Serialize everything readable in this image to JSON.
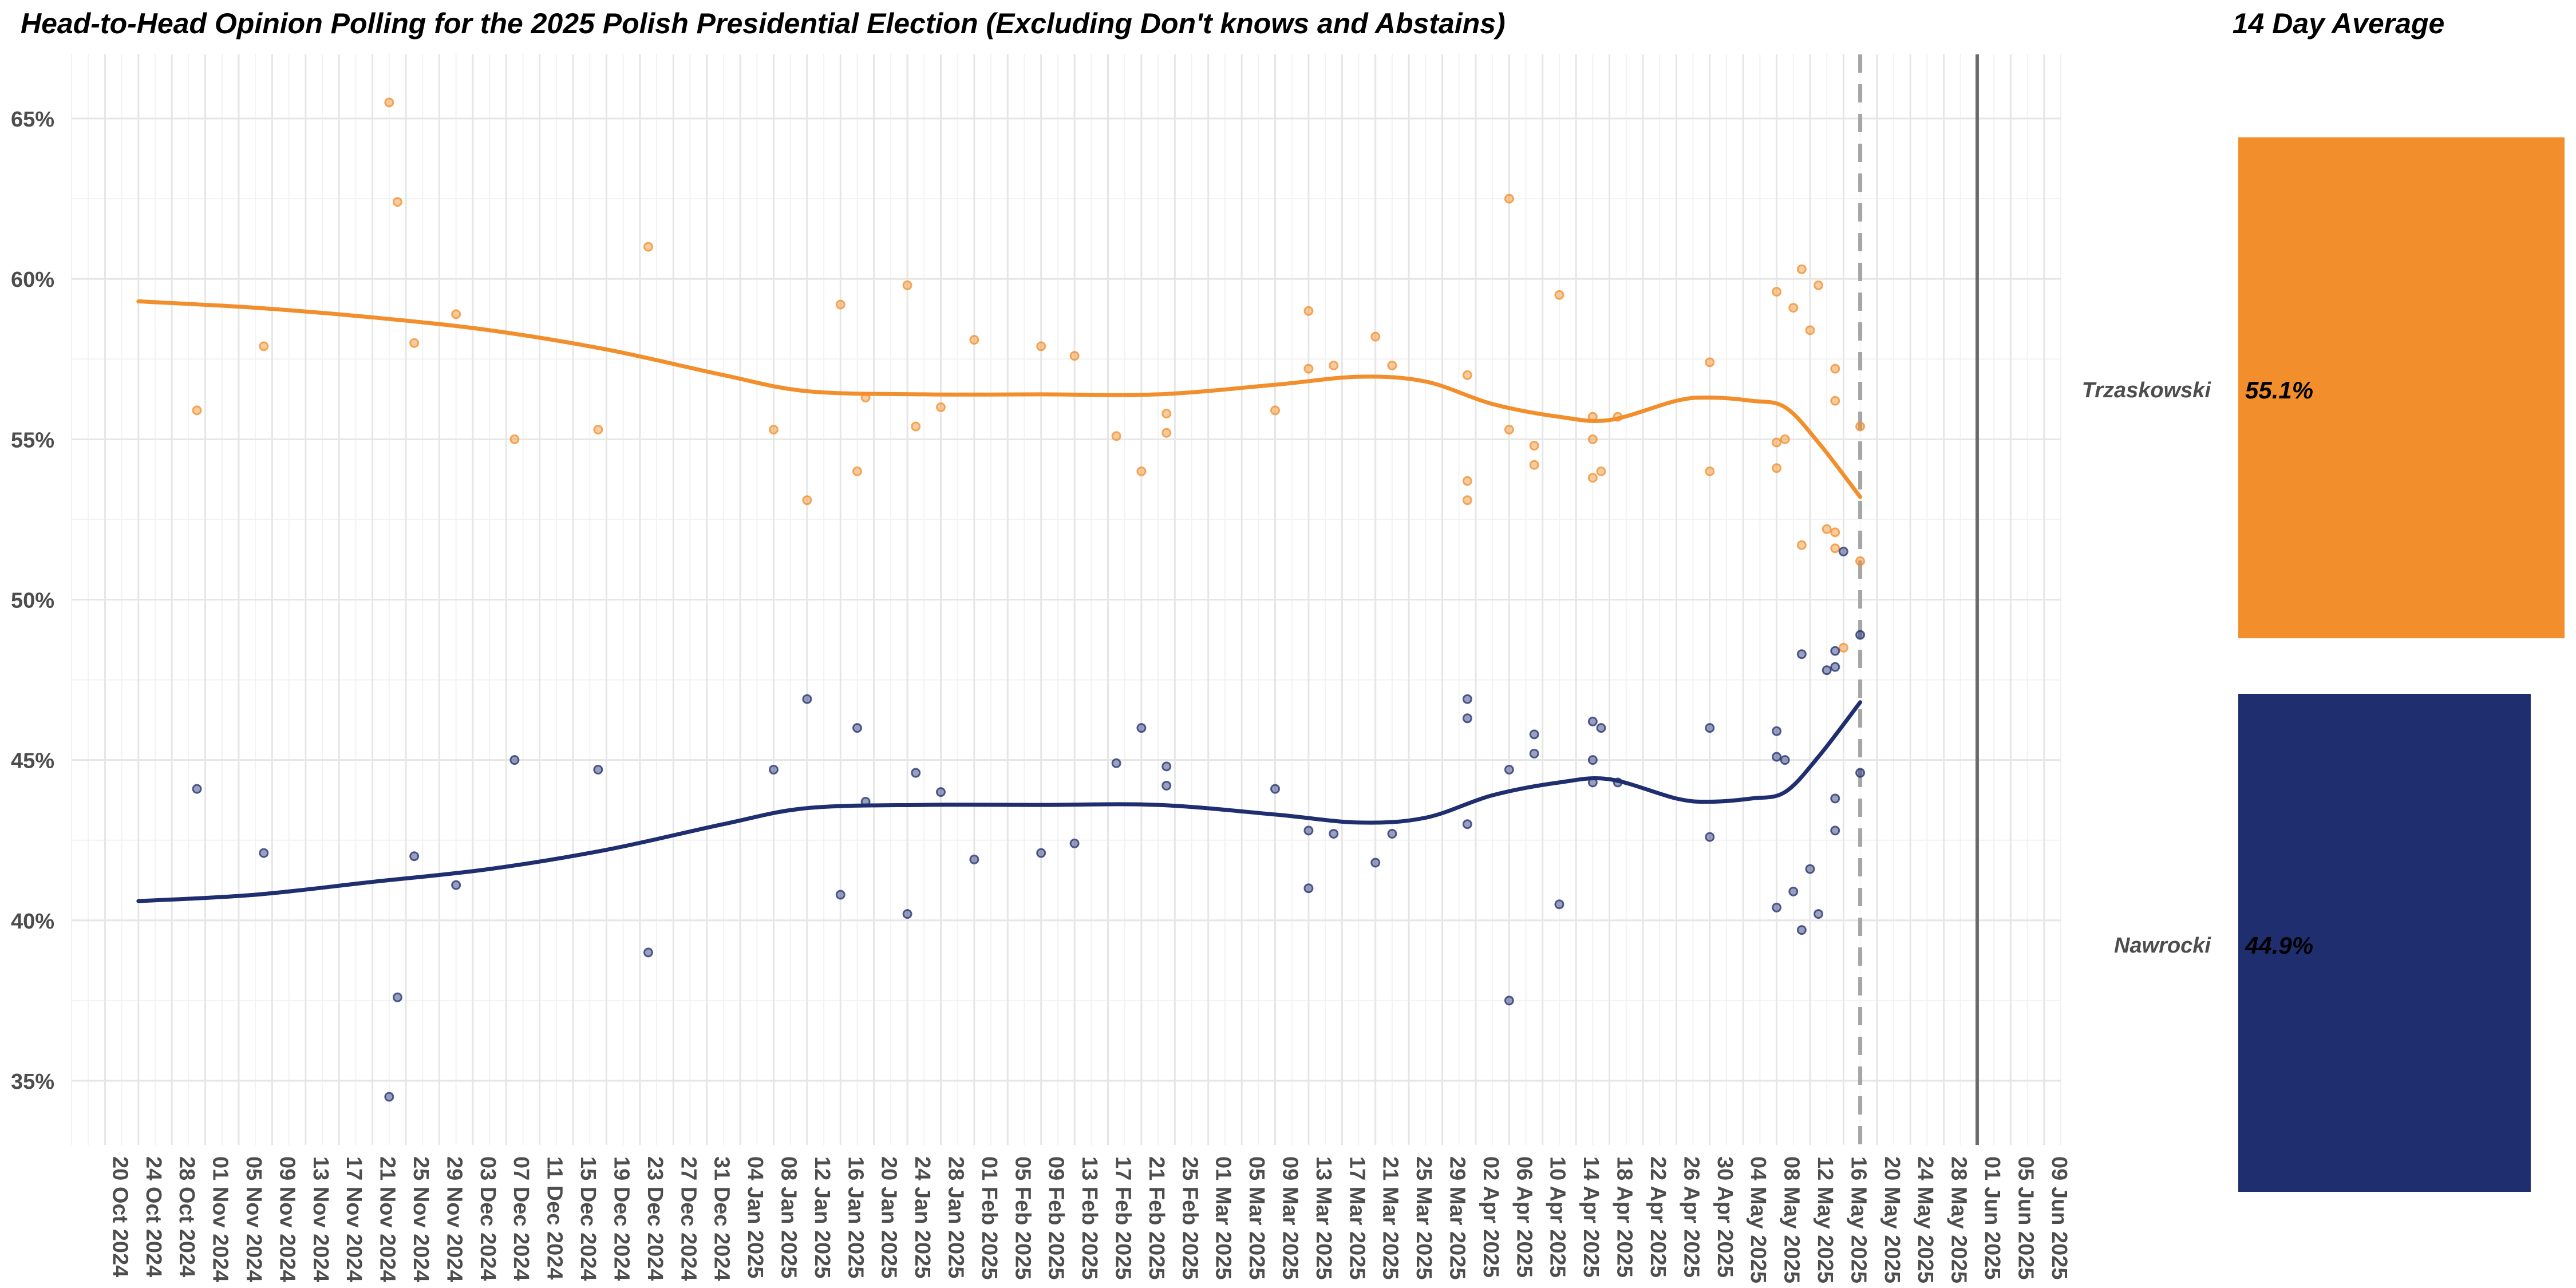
{
  "chart_data": [
    {
      "type": "scatter",
      "title": "Head-to-Head Opinion Polling for the 2025 Polish Presidential Election (Excluding Don't knows and Abstains)",
      "xlabel": "",
      "ylabel": "",
      "x_range": [
        "2024-10-16",
        "2025-06-11"
      ],
      "ylim": [
        33,
        67
      ],
      "y_ticks": [
        35,
        40,
        45,
        50,
        55,
        60,
        65
      ],
      "y_tick_labels": [
        "35%",
        "40%",
        "45%",
        "50%",
        "55%",
        "60%",
        "65%"
      ],
      "x_tick_labels": [
        "20 Oct 2024",
        "24 Oct 2024",
        "28 Oct 2024",
        "01 Nov 2024",
        "05 Nov 2024",
        "09 Nov 2024",
        "13 Nov 2024",
        "17 Nov 2024",
        "21 Nov 2024",
        "25 Nov 2024",
        "29 Nov 2024",
        "03 Dec 2024",
        "07 Dec 2024",
        "11 Dec 2024",
        "15 Dec 2024",
        "19 Dec 2024",
        "23 Dec 2024",
        "27 Dec 2024",
        "31 Dec 2024",
        "04 Jan 2025",
        "08 Jan 2025",
        "12 Jan 2025",
        "16 Jan 2025",
        "20 Jan 2025",
        "24 Jan 2025",
        "28 Jan 2025",
        "01 Feb 2025",
        "05 Feb 2025",
        "09 Feb 2025",
        "13 Feb 2025",
        "17 Feb 2025",
        "21 Feb 2025",
        "25 Feb 2025",
        "01 Mar 2025",
        "05 Mar 2025",
        "09 Mar 2025",
        "13 Mar 2025",
        "17 Mar 2025",
        "21 Mar 2025",
        "25 Mar 2025",
        "29 Mar 2025",
        "02 Apr 2025",
        "06 Apr 2025",
        "10 Apr 2025",
        "14 Apr 2025",
        "18 Apr 2025",
        "22 Apr 2025",
        "26 Apr 2025",
        "30 Apr 2025",
        "04 May 2025",
        "08 May 2025",
        "12 May 2025",
        "16 May 2025",
        "20 May 2025",
        "24 May 2025",
        "28 May 2025",
        "01 Jun 2025",
        "05 Jun 2025",
        "09 Jun 2025"
      ],
      "grid": true,
      "vline_dashed": "2025-05-18",
      "vline_solid": "2025-06-01",
      "series": [
        {
          "name": "Trzaskowski",
          "color": "#F28E2B",
          "points": [
            [
              "2024-10-31",
              55.9
            ],
            [
              "2024-11-08",
              57.9
            ],
            [
              "2024-11-23",
              65.5
            ],
            [
              "2024-11-24",
              62.4
            ],
            [
              "2024-11-26",
              58.0
            ],
            [
              "2024-12-01",
              58.9
            ],
            [
              "2024-12-08",
              55.0
            ],
            [
              "2024-12-18",
              55.3
            ],
            [
              "2024-12-24",
              61.0
            ],
            [
              "2025-01-08",
              55.3
            ],
            [
              "2025-01-12",
              53.1
            ],
            [
              "2025-01-16",
              59.2
            ],
            [
              "2025-01-18",
              54.0
            ],
            [
              "2025-01-19",
              56.3
            ],
            [
              "2025-01-24",
              59.8
            ],
            [
              "2025-01-25",
              55.4
            ],
            [
              "2025-01-28",
              56.0
            ],
            [
              "2025-02-01",
              58.1
            ],
            [
              "2025-02-09",
              57.9
            ],
            [
              "2025-02-13",
              57.6
            ],
            [
              "2025-02-18",
              55.1
            ],
            [
              "2025-02-21",
              54.0
            ],
            [
              "2025-02-24",
              55.8
            ],
            [
              "2025-02-24",
              55.2
            ],
            [
              "2025-03-09",
              55.9
            ],
            [
              "2025-03-13",
              59.0
            ],
            [
              "2025-03-13",
              57.2
            ],
            [
              "2025-03-16",
              57.3
            ],
            [
              "2025-03-21",
              58.2
            ],
            [
              "2025-03-23",
              57.3
            ],
            [
              "2025-04-01",
              57.0
            ],
            [
              "2025-04-01",
              53.7
            ],
            [
              "2025-04-01",
              53.1
            ],
            [
              "2025-04-06",
              62.5
            ],
            [
              "2025-04-06",
              55.3
            ],
            [
              "2025-04-09",
              54.8
            ],
            [
              "2025-04-09",
              54.2
            ],
            [
              "2025-04-12",
              59.5
            ],
            [
              "2025-04-16",
              55.7
            ],
            [
              "2025-04-16",
              55.0
            ],
            [
              "2025-04-16",
              53.8
            ],
            [
              "2025-04-17",
              54.0
            ],
            [
              "2025-04-19",
              55.7
            ],
            [
              "2025-04-30",
              57.4
            ],
            [
              "2025-04-30",
              54.0
            ],
            [
              "2025-05-08",
              59.6
            ],
            [
              "2025-05-08",
              54.9
            ],
            [
              "2025-05-08",
              54.1
            ],
            [
              "2025-05-09",
              55.0
            ],
            [
              "2025-05-10",
              59.1
            ],
            [
              "2025-05-11",
              51.7
            ],
            [
              "2025-05-11",
              60.3
            ],
            [
              "2025-05-12",
              58.4
            ],
            [
              "2025-05-13",
              59.8
            ],
            [
              "2025-05-14",
              52.2
            ],
            [
              "2025-05-15",
              57.2
            ],
            [
              "2025-05-15",
              56.2
            ],
            [
              "2025-05-15",
              52.1
            ],
            [
              "2025-05-15",
              51.6
            ],
            [
              "2025-05-16",
              48.5
            ],
            [
              "2025-05-18",
              55.4
            ],
            [
              "2025-05-18",
              51.2
            ]
          ],
          "trend": [
            [
              "2024-10-24",
              59.3
            ],
            [
              "2024-11-07",
              59.1
            ],
            [
              "2024-11-21",
              58.8
            ],
            [
              "2024-12-05",
              58.4
            ],
            [
              "2024-12-19",
              57.8
            ],
            [
              "2025-01-02",
              57.0
            ],
            [
              "2025-01-12",
              56.5
            ],
            [
              "2025-01-26",
              56.4
            ],
            [
              "2025-02-09",
              56.4
            ],
            [
              "2025-02-23",
              56.4
            ],
            [
              "2025-03-09",
              56.7
            ],
            [
              "2025-03-19",
              56.95
            ],
            [
              "2025-03-27",
              56.8
            ],
            [
              "2025-04-04",
              56.1
            ],
            [
              "2025-04-12",
              55.7
            ],
            [
              "2025-04-18",
              55.6
            ],
            [
              "2025-04-26",
              56.2
            ],
            [
              "2025-04-30",
              56.3
            ],
            [
              "2025-05-05",
              56.2
            ],
            [
              "2025-05-09",
              56.0
            ],
            [
              "2025-05-13",
              54.9
            ],
            [
              "2025-05-18",
              53.2
            ]
          ],
          "average": 55.1,
          "average_label": "55.1%"
        },
        {
          "name": "Nawrocki",
          "color": "#1F2E6E",
          "points": [
            [
              "2024-10-31",
              44.1
            ],
            [
              "2024-11-08",
              42.1
            ],
            [
              "2024-11-23",
              34.5
            ],
            [
              "2024-11-24",
              37.6
            ],
            [
              "2024-11-26",
              42.0
            ],
            [
              "2024-12-01",
              41.1
            ],
            [
              "2024-12-08",
              45.0
            ],
            [
              "2024-12-18",
              44.7
            ],
            [
              "2024-12-24",
              39.0
            ],
            [
              "2025-01-08",
              44.7
            ],
            [
              "2025-01-12",
              46.9
            ],
            [
              "2025-01-16",
              40.8
            ],
            [
              "2025-01-18",
              46.0
            ],
            [
              "2025-01-19",
              43.7
            ],
            [
              "2025-01-24",
              40.2
            ],
            [
              "2025-01-25",
              44.6
            ],
            [
              "2025-01-28",
              44.0
            ],
            [
              "2025-02-01",
              41.9
            ],
            [
              "2025-02-09",
              42.1
            ],
            [
              "2025-02-13",
              42.4
            ],
            [
              "2025-02-18",
              44.9
            ],
            [
              "2025-02-21",
              46.0
            ],
            [
              "2025-02-24",
              44.8
            ],
            [
              "2025-02-24",
              44.2
            ],
            [
              "2025-03-09",
              44.1
            ],
            [
              "2025-03-13",
              42.8
            ],
            [
              "2025-03-13",
              41.0
            ],
            [
              "2025-03-16",
              42.7
            ],
            [
              "2025-03-21",
              41.8
            ],
            [
              "2025-03-23",
              42.7
            ],
            [
              "2025-04-01",
              46.9
            ],
            [
              "2025-04-01",
              46.3
            ],
            [
              "2025-04-01",
              43.0
            ],
            [
              "2025-04-06",
              37.5
            ],
            [
              "2025-04-06",
              44.7
            ],
            [
              "2025-04-09",
              45.2
            ],
            [
              "2025-04-09",
              45.8
            ],
            [
              "2025-04-12",
              40.5
            ],
            [
              "2025-04-16",
              46.2
            ],
            [
              "2025-04-16",
              45.0
            ],
            [
              "2025-04-16",
              44.3
            ],
            [
              "2025-04-17",
              46.0
            ],
            [
              "2025-04-19",
              44.3
            ],
            [
              "2025-04-30",
              46.0
            ],
            [
              "2025-04-30",
              42.6
            ],
            [
              "2025-05-08",
              40.4
            ],
            [
              "2025-05-08",
              45.9
            ],
            [
              "2025-05-08",
              45.1
            ],
            [
              "2025-05-09",
              45.0
            ],
            [
              "2025-05-10",
              40.9
            ],
            [
              "2025-05-11",
              48.3
            ],
            [
              "2025-05-11",
              39.7
            ],
            [
              "2025-05-12",
              41.6
            ],
            [
              "2025-05-13",
              40.2
            ],
            [
              "2025-05-14",
              47.8
            ],
            [
              "2025-05-15",
              42.8
            ],
            [
              "2025-05-15",
              43.8
            ],
            [
              "2025-05-15",
              47.9
            ],
            [
              "2025-05-15",
              48.4
            ],
            [
              "2025-05-16",
              51.5
            ],
            [
              "2025-05-18",
              44.6
            ],
            [
              "2025-05-18",
              48.9
            ]
          ],
          "trend": [
            [
              "2024-10-24",
              40.6
            ],
            [
              "2024-11-07",
              40.8
            ],
            [
              "2024-11-21",
              41.2
            ],
            [
              "2024-12-05",
              41.6
            ],
            [
              "2024-12-19",
              42.2
            ],
            [
              "2025-01-02",
              43.0
            ],
            [
              "2025-01-12",
              43.5
            ],
            [
              "2025-01-26",
              43.6
            ],
            [
              "2025-02-09",
              43.6
            ],
            [
              "2025-02-23",
              43.6
            ],
            [
              "2025-03-09",
              43.3
            ],
            [
              "2025-03-19",
              43.05
            ],
            [
              "2025-03-27",
              43.2
            ],
            [
              "2025-04-04",
              43.9
            ],
            [
              "2025-04-12",
              44.3
            ],
            [
              "2025-04-18",
              44.4
            ],
            [
              "2025-04-26",
              43.8
            ],
            [
              "2025-04-30",
              43.7
            ],
            [
              "2025-05-05",
              43.8
            ],
            [
              "2025-05-09",
              44.0
            ],
            [
              "2025-05-13",
              45.1
            ],
            [
              "2025-05-18",
              46.8
            ]
          ],
          "average": 44.9,
          "average_label": "44.9%"
        }
      ]
    },
    {
      "type": "bar",
      "title": "14 Day Average",
      "categories": [
        "Trzaskowski",
        "Nawrocki"
      ],
      "values": [
        55.1,
        44.9
      ],
      "value_labels": [
        "55.1%",
        "44.9%"
      ],
      "colors": [
        "#F28E2B",
        "#1F2E6E"
      ]
    }
  ]
}
